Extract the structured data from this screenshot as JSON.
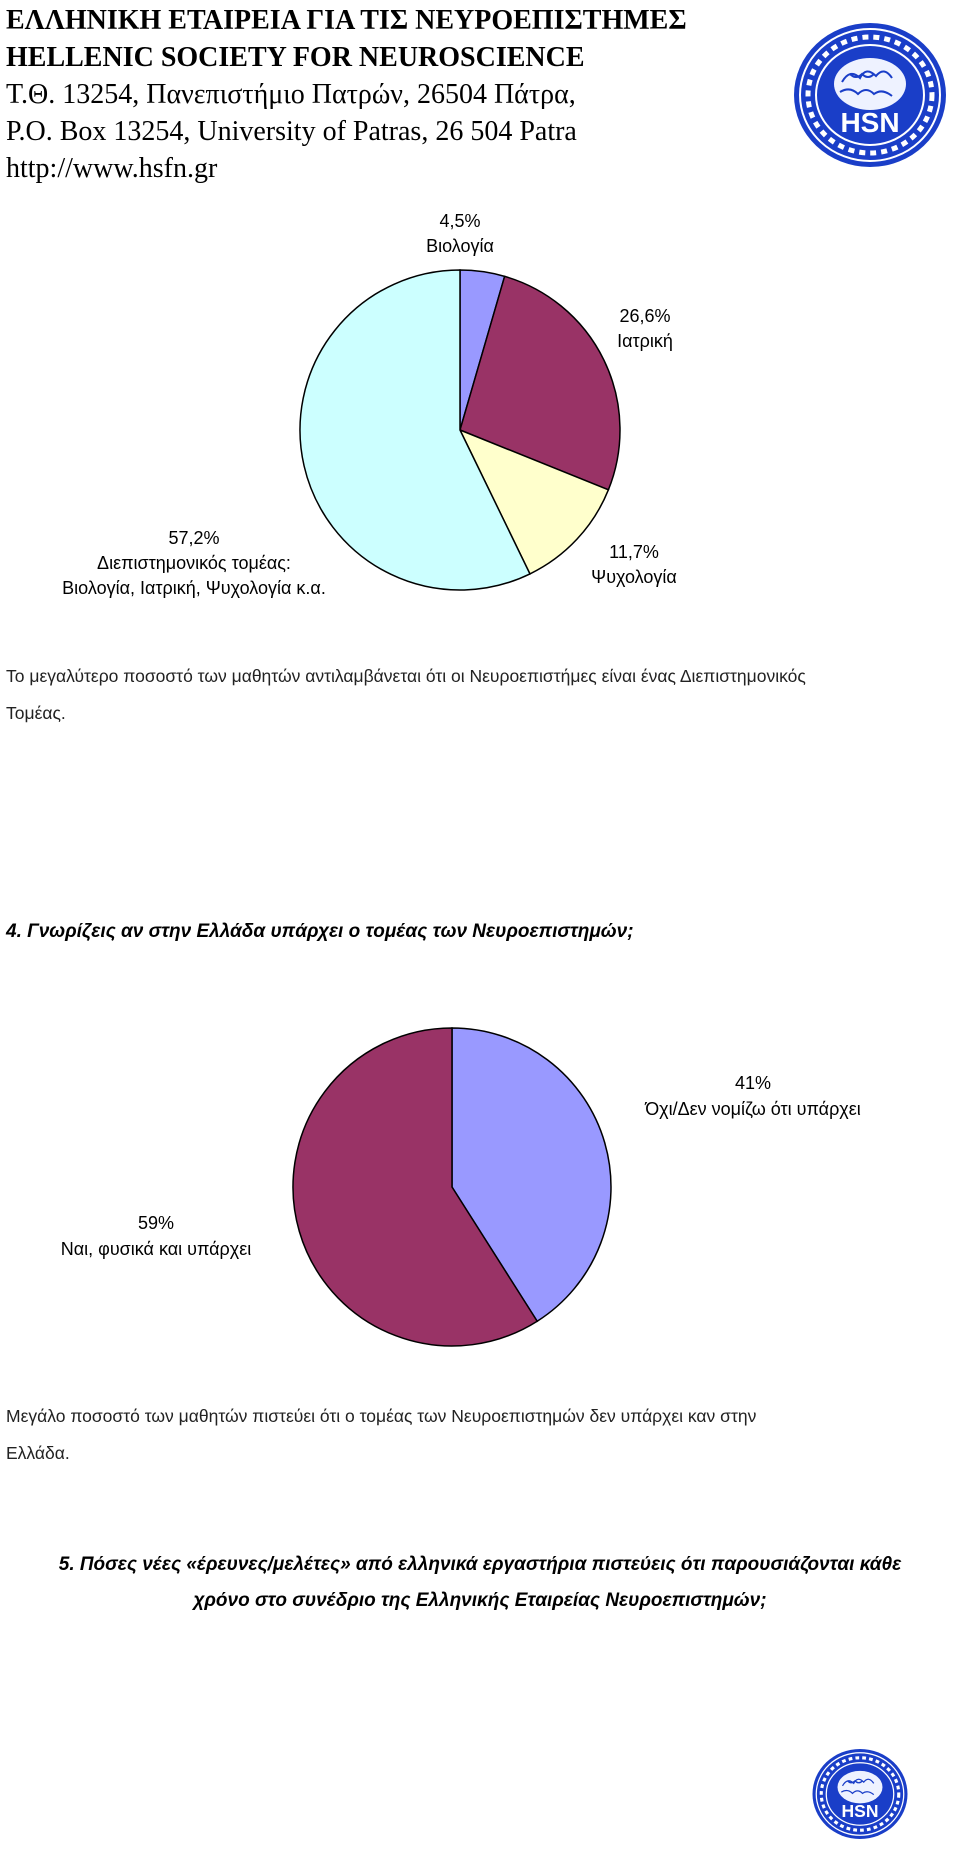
{
  "header": {
    "line1": "ΕΛΛΗΝΙΚΗ ΕΤΑΙΡΕΙΑ ΓΙΑ ΤΙΣ ΝΕΥΡΟΕΠΙΣΤΗΜΕΣ",
    "line2": "HELLENIC SOCIETY FOR NEUROSCIENCE",
    "line3": "Τ.Θ. 13254, Πανεπιστήμιο Πατρών, 26504 Πάτρα,",
    "line4": "P.O. Box 13254, University of Patras, 26 504 Patra",
    "line5": "http://www.hsfn.gr"
  },
  "logo": {
    "text": "HSN",
    "icon": "brain-icon",
    "colors": {
      "blue": "#1a3ec8",
      "white": "#ffffff"
    }
  },
  "chart_data": [
    {
      "type": "pie",
      "title": "",
      "slices": [
        {
          "pct_label": "4,5%",
          "label": "Βιολογία",
          "value": 4.5,
          "color": "#9999ff"
        },
        {
          "pct_label": "26,6%",
          "label": "Ιατρική",
          "value": 26.6,
          "color": "#993366"
        },
        {
          "pct_label": "11,7%",
          "label": "Ψυχολογία",
          "value": 11.7,
          "color": "#ffffcc"
        },
        {
          "pct_label": "57,2%",
          "label": "Διεπιστημονικός τομέας:",
          "label2": "Βιολογία, Ιατρική, Ψυχολογία κ.α.",
          "value": 57.2,
          "color": "#ccffff"
        }
      ]
    },
    {
      "type": "pie",
      "title": "",
      "slices": [
        {
          "pct_label": "41%",
          "label": "Όχι/Δεν νομίζω ότι υπάρχει",
          "value": 41,
          "color": "#9999ff"
        },
        {
          "pct_label": "59%",
          "label": "Ναι, φυσικά και υπάρχει",
          "value": 59,
          "color": "#993366"
        }
      ]
    }
  ],
  "paragraphs": {
    "p1_line1": "Το μεγαλύτερο ποσοστό των μαθητών αντιλαμβάνεται ότι οι Νευροεπιστήμες είναι ένας Διεπιστημονικός",
    "p1_line2": "Τομέας.",
    "q4": "4. Γνωρίζεις αν στην Ελλάδα υπάρχει ο τομέας των Νευροεπιστημών;",
    "p2_line1": "Μεγάλο ποσοστό των μαθητών πιστεύει ότι ο τομέας των Νευροεπιστημών δεν υπάρχει καν στην",
    "p2_line2": "Ελλάδα.",
    "q5_line1": "5. Πόσες νέες «έρευνες/μελέτες» από ελληνικά εργαστήρια πιστεύεις ότι παρουσιάζονται κάθε",
    "q5_line2": "χρόνο στο συνέδριο της Ελληνικής Εταιρείας Νευροεπιστημών;"
  }
}
